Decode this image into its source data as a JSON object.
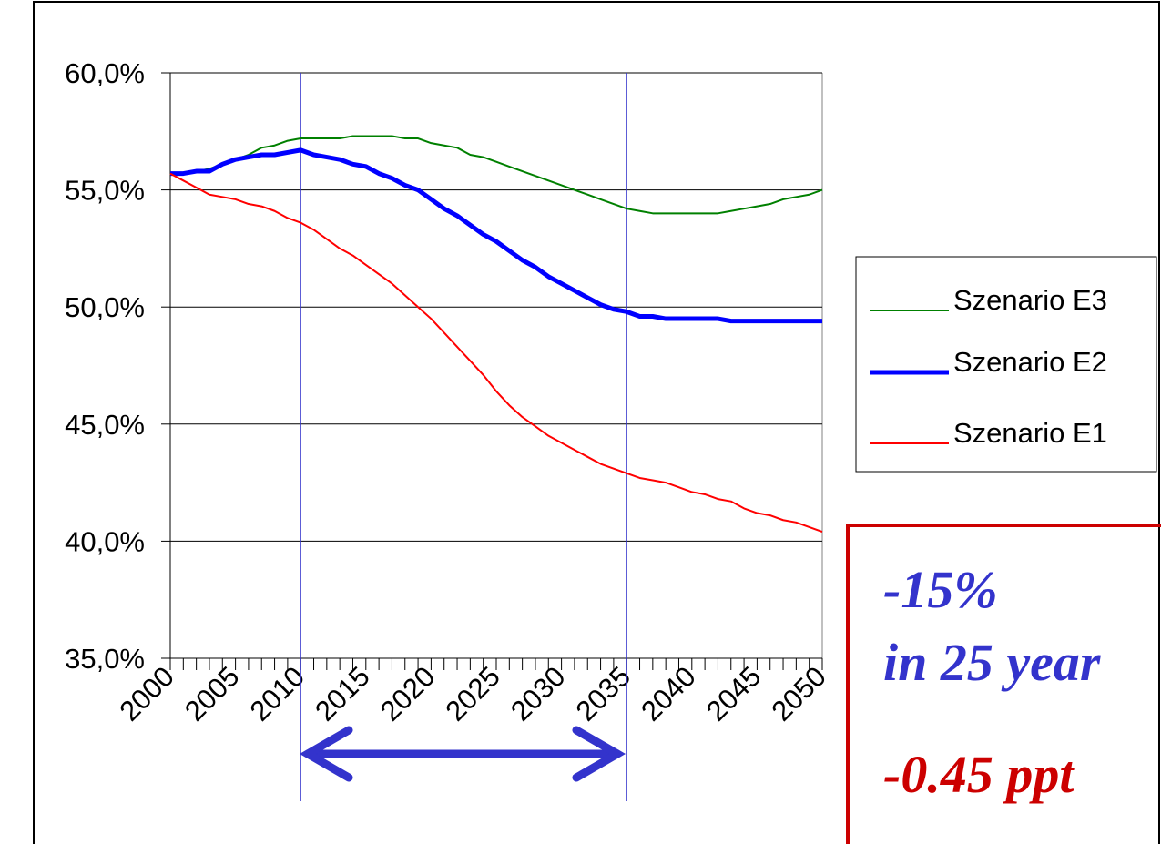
{
  "chart_data": {
    "type": "line",
    "x": [
      2000,
      2001,
      2002,
      2003,
      2004,
      2005,
      2006,
      2007,
      2008,
      2009,
      2010,
      2011,
      2012,
      2013,
      2014,
      2015,
      2016,
      2017,
      2018,
      2019,
      2020,
      2021,
      2022,
      2023,
      2024,
      2025,
      2026,
      2027,
      2028,
      2029,
      2030,
      2031,
      2032,
      2033,
      2034,
      2035,
      2036,
      2037,
      2038,
      2039,
      2040,
      2041,
      2042,
      2043,
      2044,
      2045,
      2046,
      2047,
      2048,
      2049,
      2050
    ],
    "series": [
      {
        "name": "Szenario E3",
        "color": "#008000",
        "width": 2,
        "values": [
          55.7,
          55.7,
          55.8,
          55.9,
          56.1,
          56.3,
          56.5,
          56.8,
          56.9,
          57.1,
          57.2,
          57.2,
          57.2,
          57.2,
          57.3,
          57.3,
          57.3,
          57.3,
          57.2,
          57.2,
          57.0,
          56.9,
          56.8,
          56.5,
          56.4,
          56.2,
          56.0,
          55.8,
          55.6,
          55.4,
          55.2,
          55.0,
          54.8,
          54.6,
          54.4,
          54.2,
          54.1,
          54.0,
          54.0,
          54.0,
          54.0,
          54.0,
          54.0,
          54.1,
          54.2,
          54.3,
          54.4,
          54.6,
          54.7,
          54.8,
          55.0
        ]
      },
      {
        "name": "Szenario E2",
        "color": "#0000ff",
        "width": 5,
        "values": [
          55.7,
          55.7,
          55.8,
          55.8,
          56.1,
          56.3,
          56.4,
          56.5,
          56.5,
          56.6,
          56.7,
          56.5,
          56.4,
          56.3,
          56.1,
          56.0,
          55.7,
          55.5,
          55.2,
          55.0,
          54.6,
          54.2,
          53.9,
          53.5,
          53.1,
          52.8,
          52.4,
          52.0,
          51.7,
          51.3,
          51.0,
          50.7,
          50.4,
          50.1,
          49.9,
          49.8,
          49.6,
          49.6,
          49.5,
          49.5,
          49.5,
          49.5,
          49.5,
          49.4,
          49.4,
          49.4,
          49.4,
          49.4,
          49.4,
          49.4,
          49.4
        ]
      },
      {
        "name": "Szenario E1",
        "color": "#ff0000",
        "width": 2,
        "values": [
          55.7,
          55.4,
          55.1,
          54.8,
          54.7,
          54.6,
          54.4,
          54.3,
          54.1,
          53.8,
          53.6,
          53.3,
          52.9,
          52.5,
          52.2,
          51.8,
          51.4,
          51.0,
          50.5,
          50.0,
          49.5,
          48.9,
          48.3,
          47.7,
          47.1,
          46.4,
          45.8,
          45.3,
          44.9,
          44.5,
          44.2,
          43.9,
          43.6,
          43.3,
          43.1,
          42.9,
          42.7,
          42.6,
          42.5,
          42.3,
          42.1,
          42.0,
          41.8,
          41.7,
          41.4,
          41.2,
          41.1,
          40.9,
          40.8,
          40.6,
          40.4
        ]
      }
    ],
    "xlim": [
      2000,
      2050
    ],
    "xticks": [
      2000,
      2005,
      2010,
      2015,
      2020,
      2025,
      2030,
      2035,
      2040,
      2045,
      2050
    ],
    "ylim": [
      35,
      60
    ],
    "yticks": [
      {
        "value": 35,
        "label": "35,0%"
      },
      {
        "value": 40,
        "label": "40,0%"
      },
      {
        "value": 45,
        "label": "45,0%"
      },
      {
        "value": 50,
        "label": "50,0%"
      },
      {
        "value": 55,
        "label": "55,0%"
      },
      {
        "value": 60,
        "label": "60,0%"
      }
    ],
    "grid": true,
    "legend": "right",
    "markers": [
      2010,
      2035
    ],
    "annotations": [
      "-15%",
      "in 25 year",
      "-0.45 ppt"
    ]
  }
}
